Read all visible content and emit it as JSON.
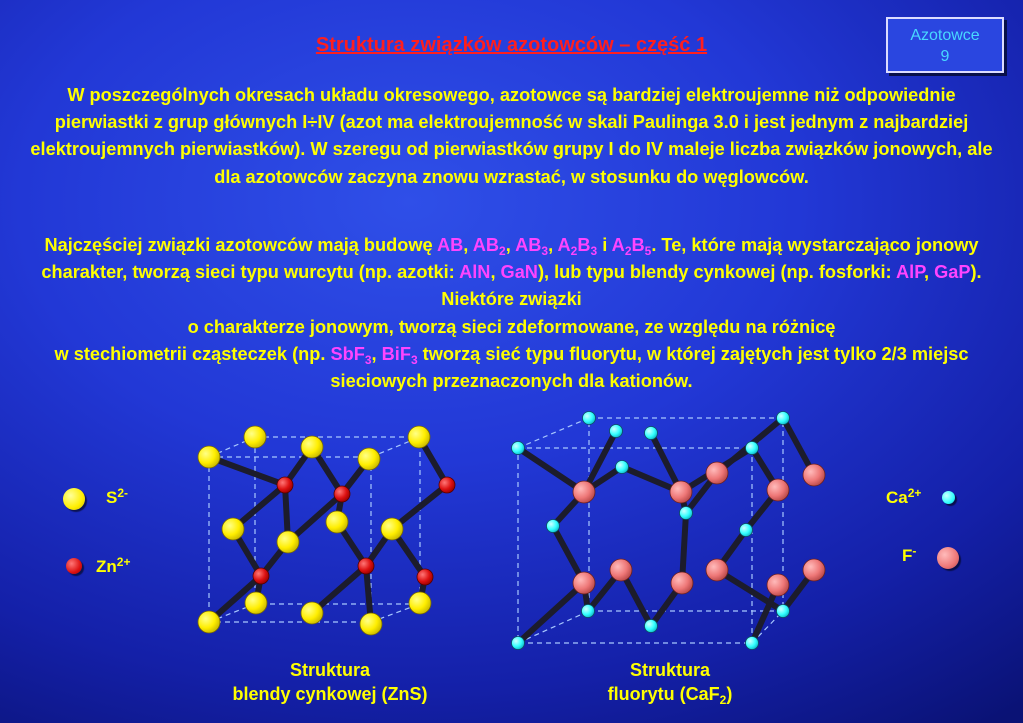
{
  "title": "Struktura związków azotowców – część 1",
  "badge": {
    "line1": "Azotowce",
    "line2": "9"
  },
  "paragraph1": "W poszczególnych okresach układu okresowego, azotowce są bardziej elektroujemne niż odpowiednie pierwiastki z grup głównych I÷IV (azot ma elektroujemność w skali Paulinga 3.0 i jest jednym z najbardziej elektroujemnych pierwiastków). W szeregu od pierwiastków grupy I do IV maleje liczba związków jonowych, ale dla azotowców zaczyna znowu wzrastać, w stosunku do węglowców.",
  "paragraph2": {
    "t1": "Najczęściej związki azotowców mają budowę ",
    "f_ab": "AB",
    "f_ab2": "AB",
    "f_ab2_sub": "2",
    "f_ab3": "AB",
    "f_ab3_sub": "3",
    "f_a2b3_a": "A",
    "f_a2b3_sub1": "2",
    "f_a2b3_b": "B",
    "f_a2b3_sub2": "3",
    "t_i": " i ",
    "f_a2b5_a": "A",
    "f_a2b5_sub1": "2",
    "f_a2b5_b": "B",
    "f_a2b5_sub2": "5",
    "t2": ". Te, które mają wystarczająco jonowy charakter, tworzą sieci typu wurcytu (np. azotki: ",
    "f_aln": "AlN",
    "f_gan": "GaN",
    "t3": "), lub typu blendy cynkowej (np. fosforki: ",
    "f_alp": "AlP",
    "f_gap": "GaP",
    "t4": "). Niektóre związki",
    "t5": "o charakterze jonowym, tworzą sieci zdeformowane, ze względu na różnicę",
    "t6": "w stechiometrii cząsteczek (np. ",
    "f_sbf": "SbF",
    "f_sbf_sub": "3",
    "f_bif": "BiF",
    "f_bif_sub": "3",
    "t7": " tworzą sieć typu fluorytu, w której zajętych jest tylko 2/3 miejsc sieciowych przeznaczonych dla kationów."
  },
  "legend_left": [
    {
      "symbol": "S",
      "charge": "2-",
      "color": "#ffee00"
    },
    {
      "symbol": "Zn",
      "charge": "2+",
      "color": "#dd1111"
    }
  ],
  "legend_right": [
    {
      "symbol": "Ca",
      "charge": "2+",
      "color": "#33ffff"
    },
    {
      "symbol": "F",
      "charge": "-",
      "color": "#ee7777"
    }
  ],
  "caption_left": {
    "line1": "Struktura",
    "line2": "blendy cynkowej (ZnS)"
  },
  "caption_right": {
    "line1": "Struktura",
    "line2a": "fluorytu (CaF",
    "line2_sub": "2",
    "line2b": ")"
  }
}
